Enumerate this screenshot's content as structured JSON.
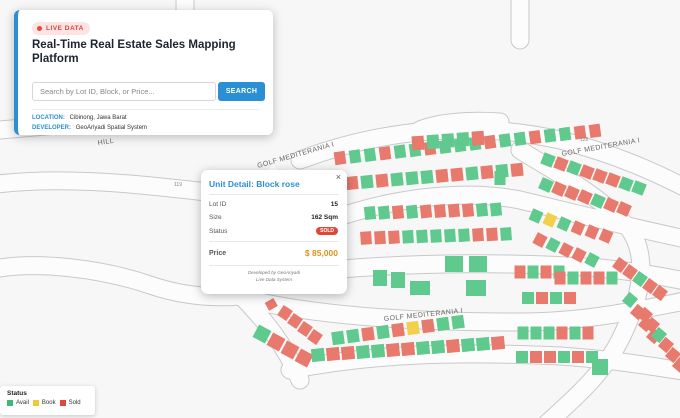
{
  "header": {
    "badge": "LIVE DATA",
    "title": "Real-Time Real Estate Sales Mapping Platform",
    "search_placeholder": "Search by Lot ID, Block, or Price...",
    "search_button": "SEARCH",
    "location_key": "LOCATION:",
    "location_value": "Cibinong, Jawa Barat",
    "developer_key": "DEVELOPER:",
    "developer_value": "GeoAriyadi Spatial System"
  },
  "map": {
    "road_labels": [
      "GOLF MEDITERANIA I",
      "GOLF MEDITERANIA I",
      "GOLF MEDITERANIA I",
      "HILL"
    ],
    "numbers": [
      "119",
      "128"
    ]
  },
  "popup": {
    "close": "×",
    "title": "Unit Detail: Block rose",
    "lot_id_label": "Lot ID",
    "lot_id_value": "15",
    "size_label": "Size",
    "size_value": "162 Sqm",
    "status_label": "Status",
    "status_value": "SOLD",
    "price_label": "Price",
    "price_value": "$ 85,000",
    "footer_line1": "Developed by GeoAriyadi",
    "footer_line2": "Live Data System"
  },
  "legend": {
    "title": "Status",
    "items": [
      {
        "label": "Avail",
        "color": "#3cb877"
      },
      {
        "label": "Book",
        "color": "#f2c935"
      },
      {
        "label": "Sold",
        "color": "#e0473a"
      }
    ]
  },
  "colors": {
    "accent": "#2b8fd6",
    "available": "#5fc98e",
    "booked": "#f2d04b",
    "sold": "#e8796d",
    "price": "#e0931c"
  }
}
